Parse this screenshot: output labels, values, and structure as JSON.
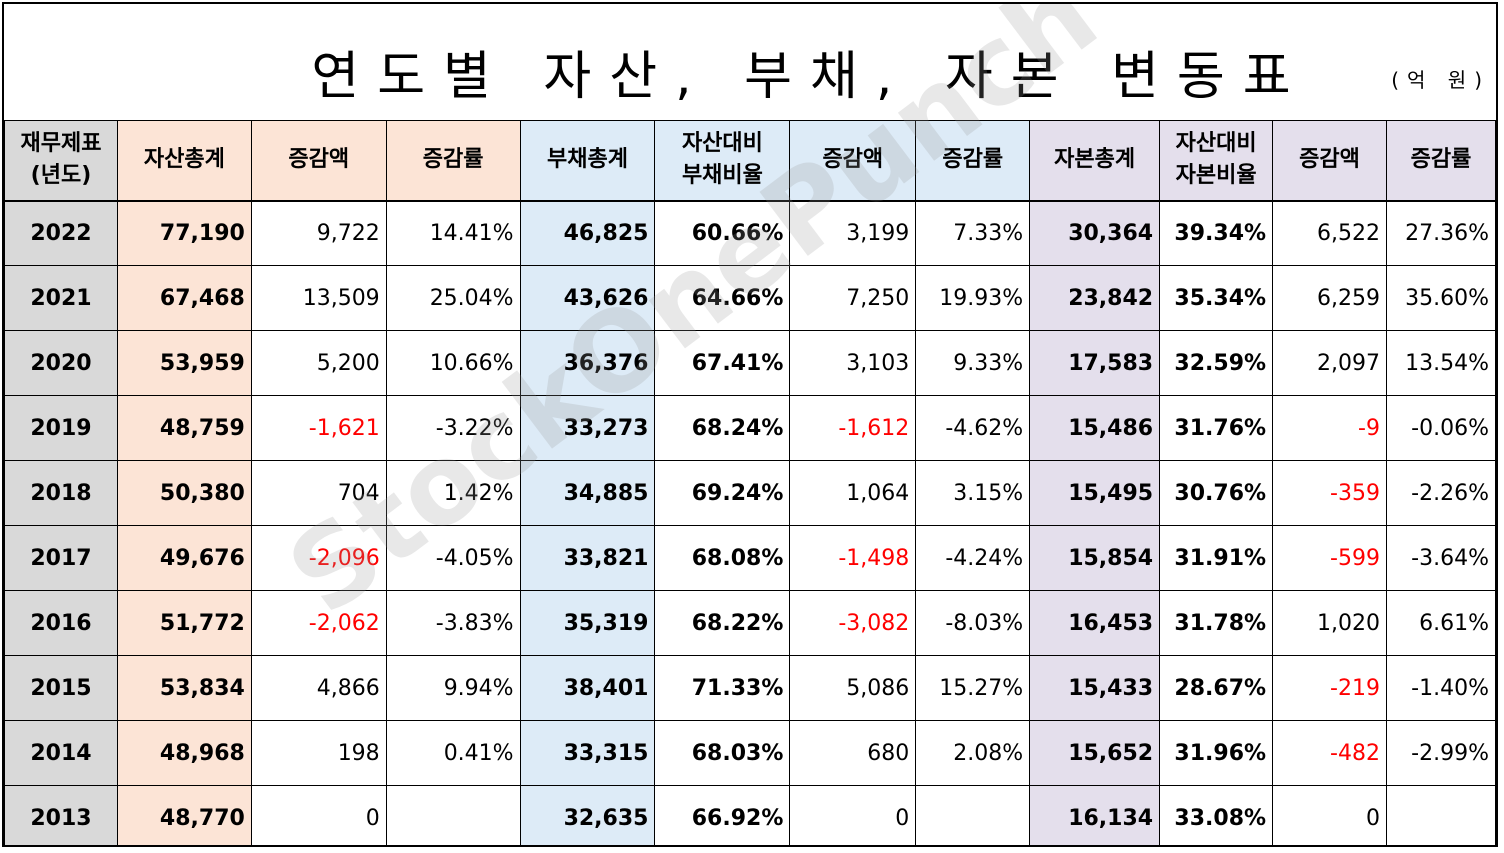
{
  "title": "연도별 자산, 부채, 자본 변동표",
  "unit": "(억 원)",
  "watermark": "StockOnePunch",
  "headers": {
    "c0": "재무제표\n(년도)",
    "c1": "자산총계",
    "c2": "증감액",
    "c3": "증감률",
    "c4": "부채총계",
    "c5": "자산대비\n부채비율",
    "c6": "증감액",
    "c7": "증감률",
    "c8": "자본총계",
    "c9": "자산대비\n자본비율",
    "c10": "증감액",
    "c11": "증감률"
  },
  "rows": [
    {
      "year": "2022",
      "asset": "77,190",
      "asset_chg": "9,722",
      "asset_rate": "14.41%",
      "debt": "46,825",
      "debt_ratio": "60.66%",
      "debt_chg": "3,199",
      "debt_rate": "7.33%",
      "equity": "30,364",
      "equity_ratio": "39.34%",
      "equity_chg": "6,522",
      "equity_rate": "27.36%"
    },
    {
      "year": "2021",
      "asset": "67,468",
      "asset_chg": "13,509",
      "asset_rate": "25.04%",
      "debt": "43,626",
      "debt_ratio": "64.66%",
      "debt_chg": "7,250",
      "debt_rate": "19.93%",
      "equity": "23,842",
      "equity_ratio": "35.34%",
      "equity_chg": "6,259",
      "equity_rate": "35.60%"
    },
    {
      "year": "2020",
      "asset": "53,959",
      "asset_chg": "5,200",
      "asset_rate": "10.66%",
      "debt": "36,376",
      "debt_ratio": "67.41%",
      "debt_chg": "3,103",
      "debt_rate": "9.33%",
      "equity": "17,583",
      "equity_ratio": "32.59%",
      "equity_chg": "2,097",
      "equity_rate": "13.54%"
    },
    {
      "year": "2019",
      "asset": "48,759",
      "asset_chg": "-1,621",
      "asset_rate": "-3.22%",
      "debt": "33,273",
      "debt_ratio": "68.24%",
      "debt_chg": "-1,612",
      "debt_rate": "-4.62%",
      "equity": "15,486",
      "equity_ratio": "31.76%",
      "equity_chg": "-9",
      "equity_rate": "-0.06%"
    },
    {
      "year": "2018",
      "asset": "50,380",
      "asset_chg": "704",
      "asset_rate": "1.42%",
      "debt": "34,885",
      "debt_ratio": "69.24%",
      "debt_chg": "1,064",
      "debt_rate": "3.15%",
      "equity": "15,495",
      "equity_ratio": "30.76%",
      "equity_chg": "-359",
      "equity_rate": "-2.26%"
    },
    {
      "year": "2017",
      "asset": "49,676",
      "asset_chg": "-2,096",
      "asset_rate": "-4.05%",
      "debt": "33,821",
      "debt_ratio": "68.08%",
      "debt_chg": "-1,498",
      "debt_rate": "-4.24%",
      "equity": "15,854",
      "equity_ratio": "31.91%",
      "equity_chg": "-599",
      "equity_rate": "-3.64%"
    },
    {
      "year": "2016",
      "asset": "51,772",
      "asset_chg": "-2,062",
      "asset_rate": "-3.83%",
      "debt": "35,319",
      "debt_ratio": "68.22%",
      "debt_chg": "-3,082",
      "debt_rate": "-8.03%",
      "equity": "16,453",
      "equity_ratio": "31.78%",
      "equity_chg": "1,020",
      "equity_rate": "6.61%"
    },
    {
      "year": "2015",
      "asset": "53,834",
      "asset_chg": "4,866",
      "asset_rate": "9.94%",
      "debt": "38,401",
      "debt_ratio": "71.33%",
      "debt_chg": "5,086",
      "debt_rate": "15.27%",
      "equity": "15,433",
      "equity_ratio": "28.67%",
      "equity_chg": "-219",
      "equity_rate": "-1.40%"
    },
    {
      "year": "2014",
      "asset": "48,968",
      "asset_chg": "198",
      "asset_rate": "0.41%",
      "debt": "33,315",
      "debt_ratio": "68.03%",
      "debt_chg": "680",
      "debt_rate": "2.08%",
      "equity": "15,652",
      "equity_ratio": "31.96%",
      "equity_chg": "-482",
      "equity_rate": "-2.99%"
    },
    {
      "year": "2013",
      "asset": "48,770",
      "asset_chg": "0",
      "asset_rate": "",
      "debt": "32,635",
      "debt_ratio": "66.92%",
      "debt_chg": "0",
      "debt_rate": "",
      "equity": "16,134",
      "equity_ratio": "33.08%",
      "equity_chg": "0",
      "equity_rate": ""
    }
  ],
  "colors": {
    "year_bg": "#d9d9d9",
    "asset_bg": "#fce4d6",
    "debt_bg": "#ddebf7",
    "equity_bg": "#e4dfec",
    "negative": "#ff0000"
  }
}
